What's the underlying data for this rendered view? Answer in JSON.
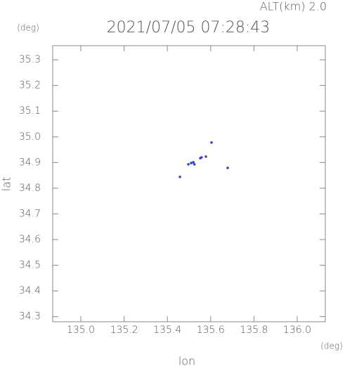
{
  "chart_data": {
    "type": "scatter",
    "title": "2021/07/05 07:28:43",
    "subtitle": "ALT(km)  2.0",
    "y_unit": "(deg)",
    "x_unit": "(deg)",
    "xlabel": "lon",
    "ylabel": "lat",
    "color": "#3344dd",
    "x": [
      135.497,
      135.51,
      135.52,
      135.525,
      135.552,
      135.558,
      135.578,
      135.604,
      135.679,
      135.458
    ],
    "values": [
      34.893,
      34.898,
      34.901,
      34.893,
      34.917,
      34.92,
      34.923,
      34.978,
      34.879,
      34.844
    ],
    "xlim": [
      134.87,
      136.13
    ],
    "ylim": [
      34.28,
      35.355
    ],
    "xticks": [
      {
        "value": 135.0,
        "label": "135.0"
      },
      135.2,
      135.4,
      135.6,
      135.8,
      {
        "value": 136.0,
        "label": "136.0"
      }
    ],
    "yticks": [
      34.3,
      34.4,
      34.5,
      34.6,
      34.7,
      34.8,
      34.9,
      {
        "value": 35.0,
        "label": "35.0"
      },
      35.1,
      35.2,
      35.3
    ]
  }
}
